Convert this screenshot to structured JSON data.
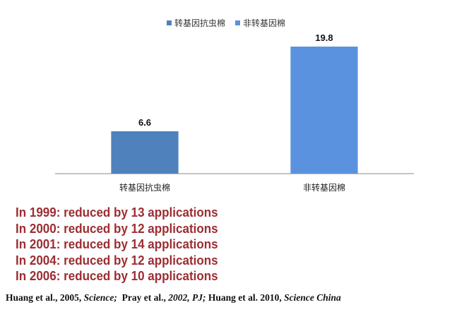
{
  "chart_data": {
    "type": "bar",
    "categories": [
      "转基因抗虫棉",
      "非转基因棉"
    ],
    "series": [
      {
        "name": "转基因抗虫棉",
        "color": "#4f81bd",
        "values": [
          6.6,
          null
        ]
      },
      {
        "name": "非转基因棉",
        "color": "#5b92e0",
        "values": [
          null,
          19.8
        ]
      }
    ],
    "data_labels": [
      "6.6",
      "19.8"
    ],
    "ylim": [
      0,
      22
    ],
    "grid": false,
    "legend": "top-center"
  },
  "notes": [
    "In 1999: reduced by 13 applications",
    "In 2000: reduced by 12 applications",
    "In 2001: reduced by 14 applications",
    "In 2004: reduced by 12 applications",
    "In 2006: reduced by 10 applications"
  ],
  "citation": {
    "part1_authors": "Huang et al., 2005, ",
    "part1_journal": "Science;",
    "part2_authors": "Pray et al., ",
    "part2_journal": "2002, PJ;",
    "part3_authors": "Huang et al. 2010, ",
    "part3_journal": "Science China"
  },
  "colors": {
    "notes_text": "#9b2d32",
    "axis": "#888888"
  }
}
